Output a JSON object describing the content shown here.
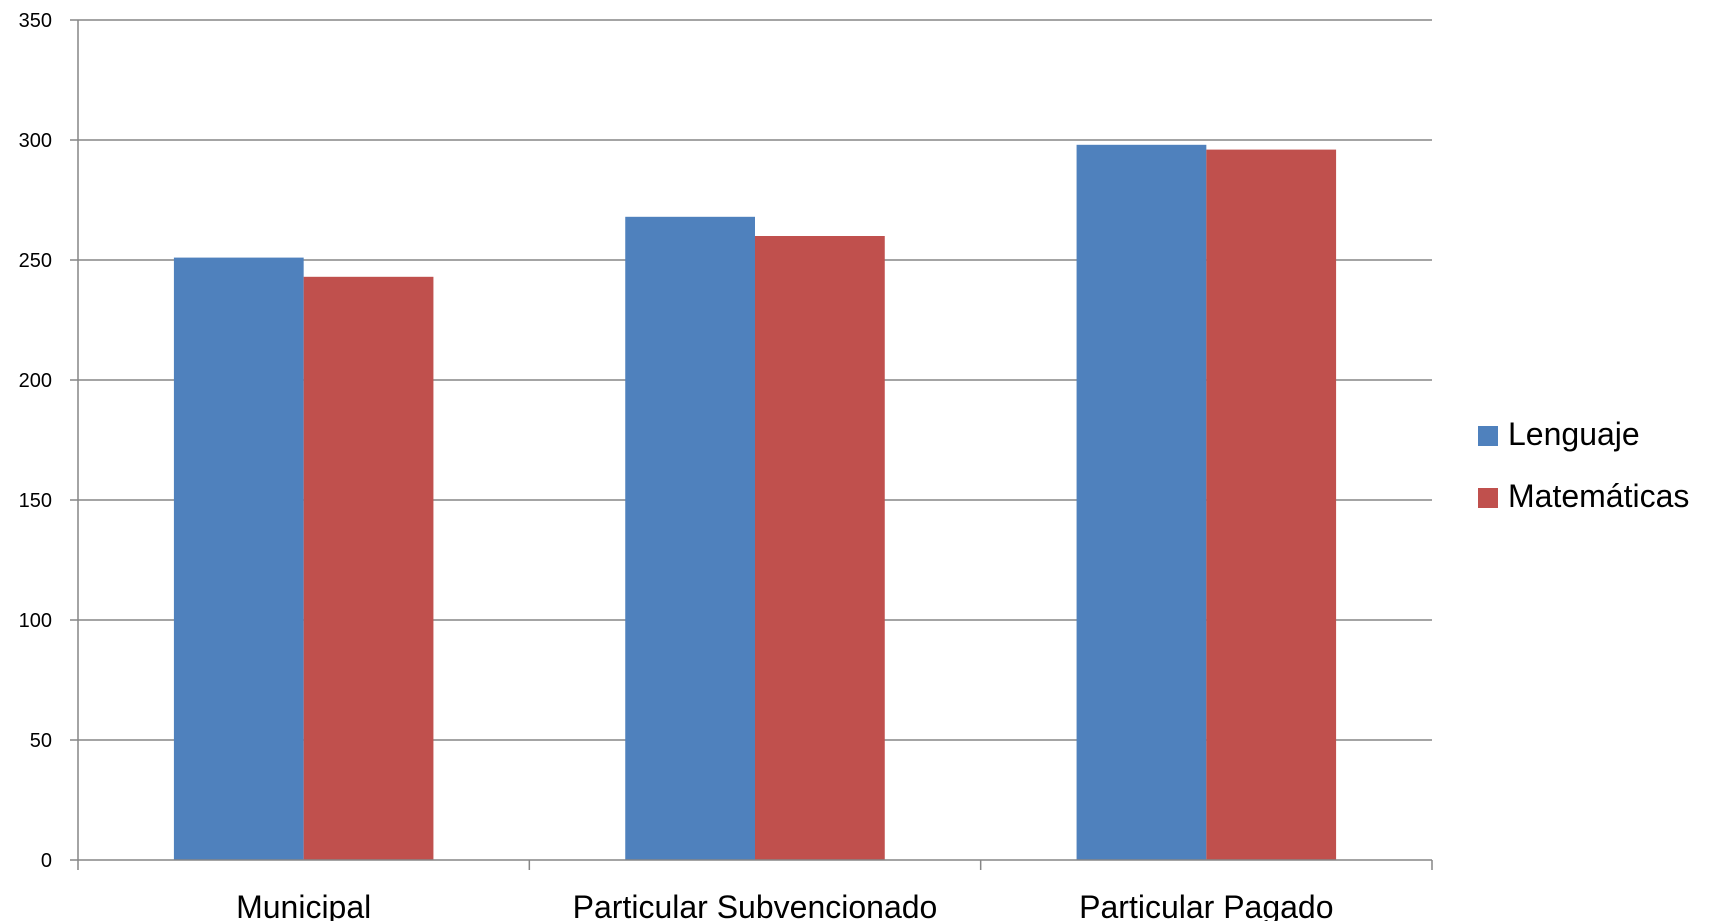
{
  "chart_data": {
    "type": "bar",
    "categories": [
      "Municipal",
      "Particular Subvencionado",
      "Particular Pagado"
    ],
    "series": [
      {
        "name": "Lenguaje",
        "values": [
          251,
          268,
          298
        ],
        "color": "#4F81BD"
      },
      {
        "name": "Matemáticas",
        "values": [
          243,
          260,
          296
        ],
        "color": "#C0504D"
      }
    ],
    "title": "",
    "xlabel": "",
    "ylabel": "",
    "ylim": [
      0,
      350
    ],
    "yticks": [
      0,
      50,
      100,
      150,
      200,
      250,
      300,
      350
    ],
    "grid": true,
    "legend_position": "right"
  }
}
